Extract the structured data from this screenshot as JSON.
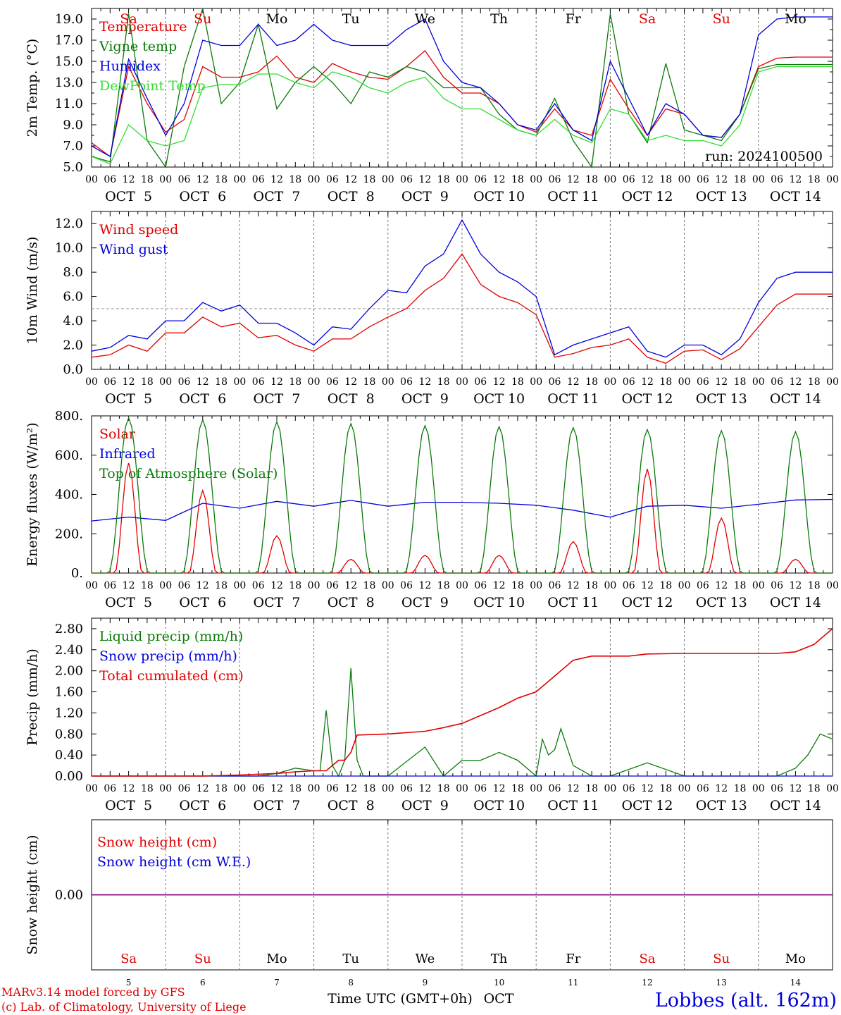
{
  "colors": {
    "red": "#e00000",
    "green": "#0a7a0a",
    "blue": "#0000dd",
    "lightgreen": "#33dd33",
    "purple": "#800080",
    "grid": "#777777"
  },
  "header": {
    "days": [
      {
        "label": "Sa",
        "color": "red"
      },
      {
        "label": "Su",
        "color": "red"
      },
      {
        "label": "Mo",
        "color": "black"
      },
      {
        "label": "Tu",
        "color": "black"
      },
      {
        "label": "We",
        "color": "black"
      },
      {
        "label": "Th",
        "color": "black"
      },
      {
        "label": "Fr",
        "color": "black"
      },
      {
        "label": "Sa",
        "color": "red"
      },
      {
        "label": "Su",
        "color": "red"
      },
      {
        "label": "Mo",
        "color": "black"
      }
    ],
    "hour_ticks": [
      "00",
      "06",
      "12",
      "18"
    ],
    "final_tick": "00",
    "dates": [
      "OCT  5",
      "OCT  6",
      "OCT  7",
      "OCT  8",
      "OCT  9",
      "OCT 10",
      "OCT 11",
      "OCT 12",
      "OCT 13",
      "OCT 14"
    ]
  },
  "run_label": "run: 2024100500",
  "footer": {
    "model": "MARv3.14 model forced by GFS",
    "lab": "(c) Lab. of Climatology, University of Liege",
    "axis_title": "Time UTC (GMT+0h)",
    "month": "OCT",
    "day_numbers": [
      "5",
      "6",
      "7",
      "8",
      "9",
      "10",
      "11",
      "12",
      "13",
      "14"
    ],
    "station": "Lobbes (alt. 162m)"
  },
  "chart_data": [
    {
      "type": "line",
      "ylabel": "2m Temp. (°C)",
      "ylim": [
        5,
        20
      ],
      "yticks": [
        5,
        7,
        9,
        11,
        13,
        15,
        17,
        19
      ],
      "ytick_labels": [
        "5.0",
        "7.0",
        "9.0",
        "11.0",
        "13.0",
        "15.0",
        "17.0",
        "19.0"
      ],
      "x_unit": "hours since 2024-10-05 00 UTC",
      "series": [
        {
          "name": "Temperature",
          "color": "red",
          "x": [
            0,
            6,
            12,
            18,
            24,
            30,
            36,
            42,
            48,
            54,
            60,
            66,
            72,
            78,
            84,
            90,
            96,
            102,
            108,
            114,
            120,
            126,
            132,
            138,
            144,
            150,
            156,
            162,
            168,
            174,
            180,
            186,
            192,
            198,
            204,
            210,
            216,
            222,
            228,
            234,
            240
          ],
          "y": [
            7.3,
            6.0,
            14.5,
            11.0,
            8.3,
            9.5,
            14.5,
            13.5,
            13.5,
            14.0,
            15.5,
            13.5,
            13.0,
            14.8,
            14.0,
            13.5,
            13.3,
            14.5,
            16.0,
            13.5,
            12.0,
            12.0,
            11.0,
            9.0,
            8.3,
            10.5,
            8.5,
            8.0,
            13.3,
            10.5,
            8.0,
            10.5,
            10.0,
            8.0,
            7.8,
            10.0,
            14.5,
            15.3,
            15.4,
            15.4,
            15.4
          ]
        },
        {
          "name": "Vigne temp",
          "color": "green",
          "x": [
            0,
            6,
            12,
            18,
            24,
            30,
            36,
            42,
            48,
            54,
            60,
            66,
            72,
            78,
            84,
            90,
            96,
            102,
            108,
            114,
            120,
            126,
            132,
            138,
            144,
            150,
            156,
            162,
            168,
            174,
            180,
            186,
            192,
            198,
            204,
            210,
            216,
            222,
            228,
            234,
            240
          ],
          "y": [
            6.0,
            5.5,
            19.5,
            7.5,
            5.0,
            14.5,
            20.0,
            11.0,
            13.0,
            18.5,
            10.5,
            13.0,
            14.5,
            13.0,
            11.0,
            14.0,
            13.5,
            14.5,
            14.0,
            12.5,
            12.5,
            12.5,
            10.0,
            8.5,
            8.0,
            11.5,
            7.5,
            5.0,
            19.5,
            10.0,
            7.3,
            14.8,
            8.5,
            8.0,
            7.5,
            10.0,
            14.3,
            14.7,
            14.7,
            14.7,
            14.7
          ]
        },
        {
          "name": "Humidex",
          "color": "blue",
          "x": [
            0,
            6,
            12,
            18,
            24,
            30,
            36,
            42,
            48,
            54,
            60,
            66,
            72,
            78,
            84,
            90,
            96,
            102,
            108,
            114,
            120,
            126,
            132,
            138,
            144,
            150,
            156,
            162,
            168,
            174,
            180,
            186,
            192,
            198,
            204,
            210,
            216,
            222,
            228,
            234,
            240
          ],
          "y": [
            7.0,
            6.0,
            15.2,
            11.5,
            8.0,
            11.0,
            17.0,
            16.5,
            16.5,
            18.5,
            16.5,
            17.0,
            18.5,
            17.0,
            16.5,
            16.5,
            16.5,
            18.0,
            19.0,
            15.0,
            13.0,
            12.5,
            11.0,
            9.0,
            8.5,
            11.0,
            8.5,
            7.5,
            15.0,
            11.5,
            8.0,
            11.0,
            10.0,
            8.0,
            7.8,
            10.0,
            17.5,
            19.0,
            19.2,
            19.2,
            19.2
          ]
        },
        {
          "name": "DewPoint Temp",
          "color": "lightgreen",
          "x": [
            0,
            6,
            12,
            18,
            24,
            30,
            36,
            42,
            48,
            54,
            60,
            66,
            72,
            78,
            84,
            90,
            96,
            102,
            108,
            114,
            120,
            126,
            132,
            138,
            144,
            150,
            156,
            162,
            168,
            174,
            180,
            186,
            192,
            198,
            204,
            210,
            216,
            222,
            228,
            234,
            240
          ],
          "y": [
            6.0,
            5.3,
            9.0,
            7.5,
            7.0,
            7.5,
            12.5,
            12.8,
            12.8,
            13.8,
            13.8,
            13.0,
            12.5,
            14.0,
            13.5,
            12.5,
            12.0,
            13.0,
            13.5,
            11.5,
            10.5,
            10.5,
            9.5,
            8.5,
            8.0,
            9.5,
            8.0,
            7.3,
            10.5,
            10.0,
            7.5,
            8.0,
            7.5,
            7.5,
            7.0,
            9.0,
            14.0,
            14.5,
            14.5,
            14.5,
            14.5
          ]
        }
      ]
    },
    {
      "type": "line",
      "ylabel": "10m Wind (m/s)",
      "ylim": [
        0,
        13
      ],
      "yticks": [
        0,
        2,
        4,
        6,
        8,
        10,
        12
      ],
      "ytick_labels": [
        "0.0",
        "2.0",
        "4.0",
        "6.0",
        "8.0",
        "10.0",
        "12.0"
      ],
      "reference_line": 5,
      "x_unit": "hours since 2024-10-05 00 UTC",
      "series": [
        {
          "name": "Wind speed",
          "color": "red",
          "x": [
            0,
            6,
            12,
            18,
            24,
            30,
            36,
            42,
            48,
            54,
            60,
            66,
            72,
            78,
            84,
            90,
            96,
            102,
            108,
            114,
            120,
            126,
            132,
            138,
            144,
            150,
            156,
            162,
            168,
            174,
            180,
            186,
            192,
            198,
            204,
            210,
            216,
            222,
            228,
            234,
            240
          ],
          "y": [
            1.0,
            1.2,
            2.0,
            1.5,
            3.0,
            3.0,
            4.3,
            3.5,
            3.8,
            2.6,
            2.8,
            2.0,
            1.5,
            2.5,
            2.5,
            3.5,
            4.3,
            5.0,
            6.5,
            7.5,
            9.5,
            7.0,
            6.0,
            5.5,
            4.5,
            1.0,
            1.3,
            1.8,
            2.0,
            2.5,
            1.0,
            0.5,
            1.5,
            1.6,
            0.8,
            1.7,
            3.5,
            5.3,
            6.2,
            6.2,
            6.2
          ]
        },
        {
          "name": "Wind gust",
          "color": "blue",
          "x": [
            0,
            6,
            12,
            18,
            24,
            30,
            36,
            42,
            48,
            54,
            60,
            66,
            72,
            78,
            84,
            90,
            96,
            102,
            108,
            114,
            120,
            126,
            132,
            138,
            144,
            150,
            156,
            162,
            168,
            174,
            180,
            186,
            192,
            198,
            204,
            210,
            216,
            222,
            228,
            234,
            240
          ],
          "y": [
            1.5,
            1.8,
            2.8,
            2.5,
            4.0,
            4.0,
            5.5,
            4.8,
            5.3,
            3.8,
            3.8,
            3.0,
            2.0,
            3.5,
            3.3,
            5.0,
            6.5,
            6.3,
            8.5,
            9.5,
            12.3,
            9.5,
            8.0,
            7.2,
            6.0,
            1.2,
            2.0,
            2.5,
            3.0,
            3.5,
            1.5,
            1.0,
            2.0,
            2.0,
            1.2,
            2.5,
            5.5,
            7.5,
            8.0,
            8.0,
            8.0
          ]
        }
      ]
    },
    {
      "type": "line",
      "ylabel": "Energy fluxes (W/m²)",
      "ylim": [
        0,
        800
      ],
      "yticks": [
        0,
        200,
        400,
        600,
        800
      ],
      "ytick_labels": [
        "0.",
        "200.",
        "400.",
        "600.",
        "800."
      ],
      "x_unit": "hours since 2024-10-05 00 UTC",
      "series": [
        {
          "name": "Solar",
          "color": "red",
          "daily_peak_hour": 12,
          "daily_peaks": [
            560,
            420,
            190,
            70,
            90,
            90,
            160,
            530,
            280,
            70
          ]
        },
        {
          "name": "Infrared",
          "color": "blue",
          "x": [
            0,
            12,
            24,
            36,
            48,
            60,
            72,
            84,
            96,
            108,
            120,
            132,
            144,
            156,
            168,
            180,
            192,
            204,
            216,
            228,
            240
          ],
          "y": [
            265,
            285,
            268,
            355,
            330,
            365,
            340,
            370,
            340,
            360,
            360,
            355,
            345,
            320,
            285,
            340,
            345,
            330,
            350,
            372,
            375
          ]
        },
        {
          "name": "Top of Atmosphere (Solar)",
          "color": "green",
          "daily_peak_hour": 12,
          "daily_peaks": [
            790,
            780,
            770,
            760,
            750,
            745,
            740,
            730,
            725,
            720
          ]
        }
      ]
    },
    {
      "type": "line",
      "ylabel": "Precip (mm/h)",
      "ylim": [
        0,
        3
      ],
      "yticks": [
        0,
        0.4,
        0.8,
        1.2,
        1.6,
        2.0,
        2.4,
        2.8
      ],
      "ytick_labels": [
        "0.00",
        "0.40",
        "0.80",
        "1.20",
        "1.60",
        "2.00",
        "2.40",
        "2.80"
      ],
      "x_unit": "hours since 2024-10-05 00 UTC",
      "series": [
        {
          "name": "Liquid precip (mm/h)",
          "color": "green",
          "x": [
            0,
            30,
            54,
            60,
            66,
            72,
            74,
            76,
            78,
            80,
            82,
            84,
            86,
            88,
            90,
            96,
            108,
            114,
            120,
            126,
            132,
            138,
            144,
            146,
            148,
            150,
            152,
            156,
            162,
            168,
            180,
            192,
            204,
            216,
            222,
            228,
            232,
            236,
            240
          ],
          "y": [
            0,
            0,
            0,
            0.05,
            0.15,
            0.1,
            0.1,
            1.25,
            0.2,
            0,
            0.3,
            2.05,
            0.3,
            0,
            0,
            0,
            0.55,
            0,
            0.3,
            0.3,
            0.45,
            0.3,
            0,
            0.7,
            0.4,
            0.5,
            0.9,
            0.2,
            0,
            0,
            0.25,
            0,
            0,
            0,
            0,
            0.15,
            0.4,
            0.8,
            0.7
          ]
        },
        {
          "name": "Snow precip (mm/h)",
          "color": "blue",
          "x": [
            0,
            240
          ],
          "y": [
            0,
            0
          ]
        },
        {
          "name": "Total cumulated (cm)",
          "color": "red",
          "x": [
            0,
            36,
            48,
            60,
            66,
            72,
            76,
            80,
            82,
            84,
            86,
            96,
            108,
            114,
            120,
            126,
            132,
            138,
            144,
            150,
            156,
            162,
            168,
            174,
            180,
            192,
            204,
            216,
            222,
            228,
            234,
            240
          ],
          "y": [
            0,
            0,
            0.02,
            0.05,
            0.08,
            0.1,
            0.1,
            0.3,
            0.3,
            0.45,
            0.78,
            0.8,
            0.85,
            0.92,
            1.0,
            1.15,
            1.3,
            1.48,
            1.6,
            1.9,
            2.2,
            2.28,
            2.28,
            2.28,
            2.32,
            2.33,
            2.33,
            2.33,
            2.33,
            2.36,
            2.5,
            2.8
          ]
        }
      ]
    },
    {
      "type": "line",
      "ylabel": "Snow height (cm)",
      "ylim": [
        -1,
        1
      ],
      "yticks": [
        0
      ],
      "ytick_labels": [
        "0.00"
      ],
      "x_unit": "hours since 2024-10-05 00 UTC",
      "series": [
        {
          "name": "Snow height (cm)",
          "color": "red",
          "x": [
            0,
            240
          ],
          "y": [
            0,
            0
          ]
        },
        {
          "name": "Snow height (cm W.E.)",
          "color": "blue",
          "x": [
            0,
            240
          ],
          "y": [
            0,
            0
          ]
        }
      ]
    }
  ]
}
